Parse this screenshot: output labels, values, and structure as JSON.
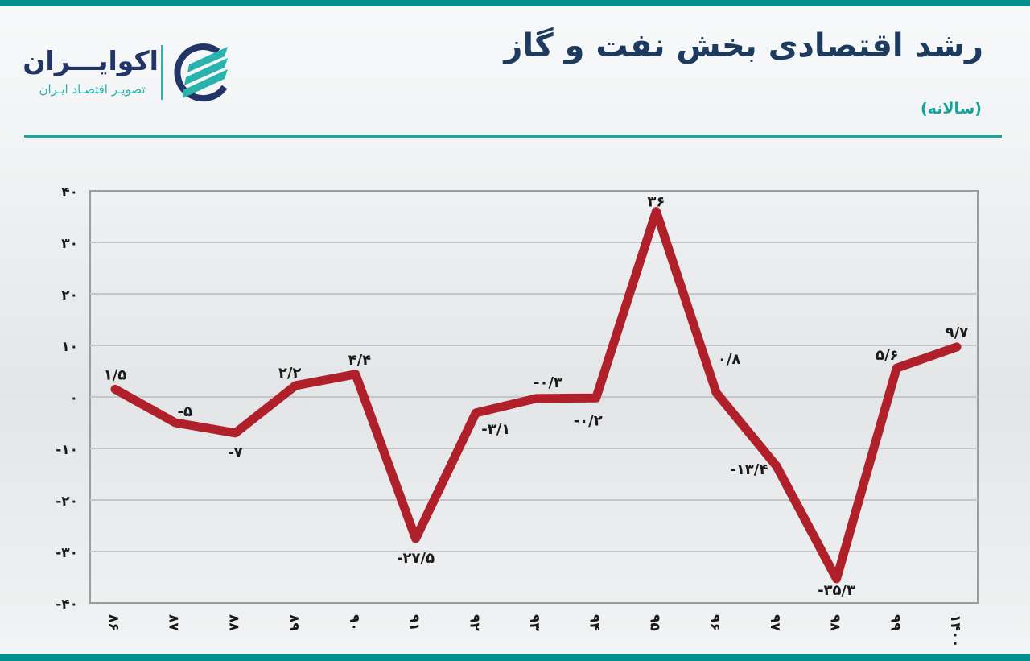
{
  "header": {
    "title": "رشد اقتصادی بخش نفت و گاز",
    "subtitle": "(سالانه)"
  },
  "logo": {
    "name": "اکوایـــران",
    "tagline": "تصویـر اقتصـاد ایـران",
    "mark_colors": {
      "ring": "#223566",
      "stripes": "#2ab3ad"
    }
  },
  "colors": {
    "top_bar": "#00918f",
    "line": "#b0202a",
    "title": "#1d3a5f",
    "subtitle": "#13a39a",
    "grid": "#c4c6c8",
    "axis": "#9a9c9e"
  },
  "chart_data": {
    "type": "line",
    "title": "رشد اقتصادی بخش نفت و گاز",
    "subtitle": "(سالانه)",
    "xlabel": "",
    "ylabel": "",
    "ylim": [
      -40,
      40
    ],
    "yticks": [
      40,
      30,
      20,
      10,
      0,
      -10,
      -20,
      -30,
      -40
    ],
    "ytick_labels": [
      "۴۰",
      "۳۰",
      "۲۰",
      "۱۰",
      "۰",
      "-۱۰",
      "-۲۰",
      "-۳۰",
      "-۴۰"
    ],
    "grid": true,
    "legend": "none",
    "categories": [
      "86",
      "87",
      "88",
      "89",
      "90",
      "91",
      "92",
      "93",
      "94",
      "95",
      "96",
      "97",
      "98",
      "99",
      "1400"
    ],
    "category_labels": [
      "۸۶",
      "۸۷",
      "۸۸",
      "۸۹",
      "۹۰",
      "۹۱",
      "۹۲",
      "۹۳",
      "۹۴",
      "۹۵",
      "۹۶",
      "۹۷",
      "۹۸",
      "۹۹",
      "۱۴۰۰"
    ],
    "series": [
      {
        "name": "رشد اقتصادی بخش نفت و گاز",
        "color": "#b0202a",
        "values": [
          1.5,
          -5,
          -7,
          2.2,
          4.4,
          -27.5,
          -3.1,
          -0.3,
          -0.2,
          36,
          0.8,
          -13.4,
          -35.3,
          5.6,
          9.7
        ],
        "data_labels": [
          "۱/۵",
          "-۵",
          "-۷",
          "۲/۲",
          "۴/۴",
          "-۲۷/۵",
          "-۳/۱",
          "-۰/۳",
          "-۰/۲",
          "۳۶",
          "۰/۸",
          "-۱۳/۴",
          "-۳۵/۳",
          "۵/۶",
          "۹/۷"
        ]
      }
    ]
  }
}
